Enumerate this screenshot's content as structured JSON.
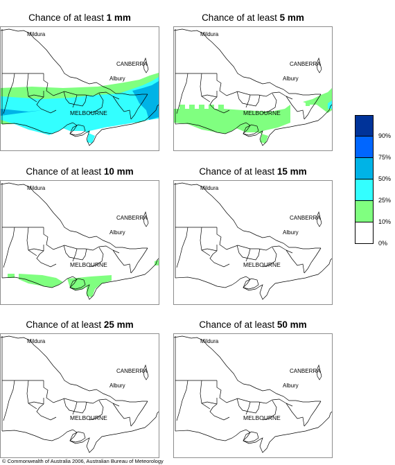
{
  "panels": [
    {
      "title_prefix": "Chance of at least ",
      "threshold": "1 mm"
    },
    {
      "title_prefix": "Chance of at least ",
      "threshold": "5 mm"
    },
    {
      "title_prefix": "Chance of at least ",
      "threshold": "10 mm"
    },
    {
      "title_prefix": "Chance of at least ",
      "threshold": "15 mm"
    },
    {
      "title_prefix": "Chance of at least ",
      "threshold": "25 mm"
    },
    {
      "title_prefix": "Chance of at least ",
      "threshold": "50 mm"
    }
  ],
  "places": {
    "mildura": "Mildura",
    "canberra": "CANBERRA",
    "albury": "Albury",
    "melbourne": "MELBOURNE"
  },
  "legend": {
    "labels": [
      "90%",
      "75%",
      "50%",
      "25%",
      "10%",
      "0%"
    ],
    "colors": [
      "#003399",
      "#0066ff",
      "#00b3e6",
      "#33ffff",
      "#80ff80",
      "#ffffff"
    ]
  },
  "colors": {
    "cat_10_25": "#80ff80",
    "cat_25_50": "#33ffff",
    "cat_50_75": "#00b3e6"
  },
  "copyright": "© Commonwealth of Australia 2006, Australian Bureau of Meteorology"
}
